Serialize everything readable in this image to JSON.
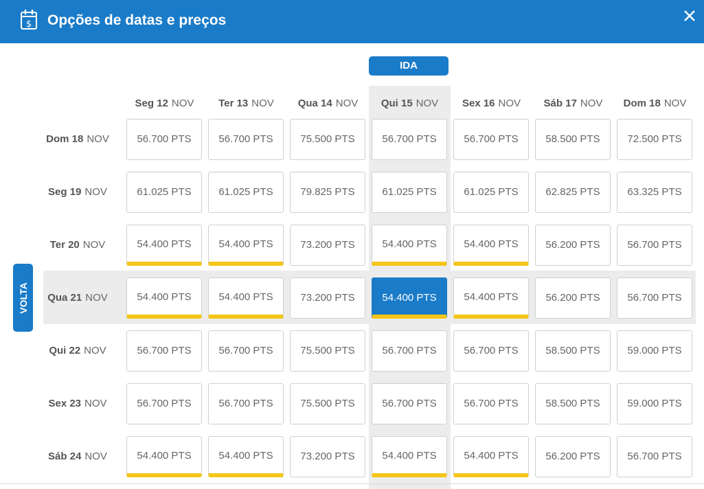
{
  "header": {
    "title": "Opções de datas e preços"
  },
  "ida_label": "IDA",
  "volta_label": "VOLTA",
  "columns": [
    {
      "day": "Seg 12",
      "month": "NOV"
    },
    {
      "day": "Ter 13",
      "month": "NOV"
    },
    {
      "day": "Qua 14",
      "month": "NOV"
    },
    {
      "day": "Qui 15",
      "month": "NOV"
    },
    {
      "day": "Sex 16",
      "month": "NOV"
    },
    {
      "day": "Sáb 17",
      "month": "NOV"
    },
    {
      "day": "Dom 18",
      "month": "NOV"
    }
  ],
  "rows": [
    {
      "day": "Dom 18",
      "month": "NOV",
      "prices": [
        "56.700 PTS",
        "56.700 PTS",
        "75.500 PTS",
        "56.700 PTS",
        "56.700 PTS",
        "58.500 PTS",
        "72.500 PTS"
      ],
      "cheapest": [
        false,
        false,
        false,
        false,
        false,
        false,
        false
      ]
    },
    {
      "day": "Seg 19",
      "month": "NOV",
      "prices": [
        "61.025 PTS",
        "61.025 PTS",
        "79.825 PTS",
        "61.025 PTS",
        "61.025 PTS",
        "62.825 PTS",
        "63.325 PTS"
      ],
      "cheapest": [
        false,
        false,
        false,
        false,
        false,
        false,
        false
      ]
    },
    {
      "day": "Ter 20",
      "month": "NOV",
      "prices": [
        "54.400 PTS",
        "54.400 PTS",
        "73.200 PTS",
        "54.400 PTS",
        "54.400 PTS",
        "56.200 PTS",
        "56.700 PTS"
      ],
      "cheapest": [
        true,
        true,
        false,
        true,
        true,
        false,
        false
      ]
    },
    {
      "day": "Qua 21",
      "month": "NOV",
      "prices": [
        "54.400 PTS",
        "54.400 PTS",
        "73.200 PTS",
        "54.400 PTS",
        "54.400 PTS",
        "56.200 PTS",
        "56.700 PTS"
      ],
      "cheapest": [
        true,
        true,
        false,
        true,
        true,
        false,
        false
      ]
    },
    {
      "day": "Qui 22",
      "month": "NOV",
      "prices": [
        "56.700 PTS",
        "56.700 PTS",
        "75.500 PTS",
        "56.700 PTS",
        "56.700 PTS",
        "58.500 PTS",
        "59.000 PTS"
      ],
      "cheapest": [
        false,
        false,
        false,
        false,
        false,
        false,
        false
      ]
    },
    {
      "day": "Sex 23",
      "month": "NOV",
      "prices": [
        "56.700 PTS",
        "56.700 PTS",
        "75.500 PTS",
        "56.700 PTS",
        "56.700 PTS",
        "58.500 PTS",
        "59.000 PTS"
      ],
      "cheapest": [
        false,
        false,
        false,
        false,
        false,
        false,
        false
      ]
    },
    {
      "day": "Sáb 24",
      "month": "NOV",
      "prices": [
        "54.400 PTS",
        "54.400 PTS",
        "73.200 PTS",
        "54.400 PTS",
        "54.400 PTS",
        "56.200 PTS",
        "56.700 PTS"
      ],
      "cheapest": [
        true,
        true,
        false,
        true,
        true,
        false,
        false
      ]
    }
  ],
  "selected": {
    "row": 3,
    "col": 3
  },
  "colors": {
    "primary": "#1a7bc8",
    "cheapest_bar": "#f5c518",
    "highlight": "#ececec"
  },
  "icons": {
    "header": "calendar-dollar-icon",
    "close": "close-icon"
  }
}
